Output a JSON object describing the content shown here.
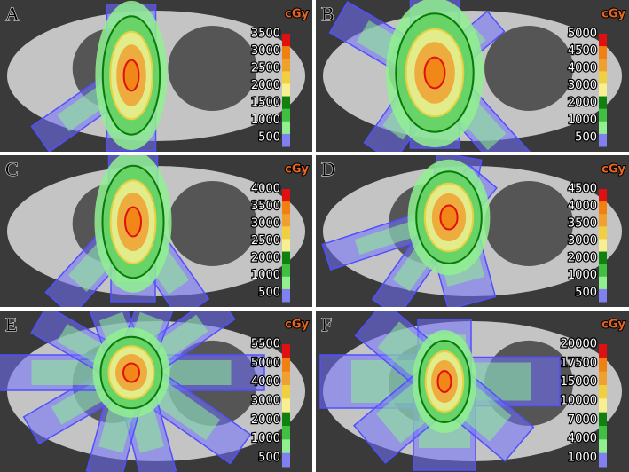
{
  "panels": [
    {
      "label": "A",
      "unit": "cGy",
      "ticks": [
        "3500",
        "3000",
        "2500",
        "2000",
        "1500",
        "1000",
        "500"
      ]
    },
    {
      "label": "B",
      "unit": "cGy",
      "ticks": [
        "5000",
        "4500",
        "4000",
        "3000",
        "2000",
        "1000",
        "500"
      ]
    },
    {
      "label": "C",
      "unit": "cGy",
      "ticks": [
        "4000",
        "3500",
        "3000",
        "2500",
        "2000",
        "1000",
        "500"
      ]
    },
    {
      "label": "D",
      "unit": "cGy",
      "ticks": [
        "4500",
        "4000",
        "3500",
        "3000",
        "2000",
        "1000",
        "500"
      ]
    },
    {
      "label": "E",
      "unit": "cGy",
      "ticks": [
        "5500",
        "5000",
        "4000",
        "3000",
        "2000",
        "1000",
        "500"
      ]
    },
    {
      "label": "F",
      "unit": "cGy",
      "ticks": [
        "20000",
        "17500",
        "15000",
        "10000",
        "7000",
        "4000",
        "1000"
      ]
    }
  ]
}
